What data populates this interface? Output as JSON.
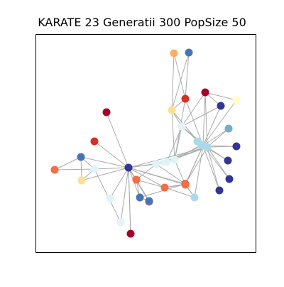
{
  "figure": {
    "title": "KARATE 23 Generatii 300 PopSize 50"
  },
  "graph": {
    "node_colors": {
      "dark_red": "#a50026",
      "red": "#d73027",
      "orange_red": "#f46d43",
      "orange": "#fdae61",
      "light_yellow": "#fee090",
      "pale_yellow": "#ffffbf",
      "pale_blue": "#e0f3f8",
      "light_blue": "#abd9e9",
      "mid_blue": "#74add1",
      "blue": "#4575b4",
      "dark_blue": "#313695"
    },
    "edge_color": "#aaaaaa",
    "nodes": [
      {
        "id": 0,
        "color": "#313695"
      },
      {
        "id": 1,
        "color": "#4575b4"
      },
      {
        "id": 2,
        "color": "#e0f3f8"
      },
      {
        "id": 3,
        "color": "#fee090"
      },
      {
        "id": 4,
        "color": "#f46d43"
      },
      {
        "id": 5,
        "color": "#f46d43"
      },
      {
        "id": 6,
        "color": "#a50026"
      },
      {
        "id": 7,
        "color": "#e0f3f8"
      },
      {
        "id": 8,
        "color": "#4575b4"
      },
      {
        "id": 9,
        "color": "#f46d43"
      },
      {
        "id": 10,
        "color": "#a50026"
      },
      {
        "id": 11,
        "color": "#f46d43"
      },
      {
        "id": 12,
        "color": "#e0f3f8"
      },
      {
        "id": 13,
        "color": "#d73027"
      },
      {
        "id": 14,
        "color": "#4575b4"
      },
      {
        "id": 15,
        "color": "#e0f3f8"
      },
      {
        "id": 16,
        "color": "#f46d43"
      },
      {
        "id": 17,
        "color": "#d73027"
      },
      {
        "id": 18,
        "color": "#e0f3f8"
      },
      {
        "id": 19,
        "color": "#f46d43"
      },
      {
        "id": 20,
        "color": "#abd9e9"
      },
      {
        "id": 21,
        "color": "#e0f3f8"
      },
      {
        "id": 22,
        "color": "#abd9e9"
      },
      {
        "id": 23,
        "color": "#e0f3f8"
      },
      {
        "id": 24,
        "color": "#fee090"
      },
      {
        "id": 25,
        "color": "#d73027"
      },
      {
        "id": 26,
        "color": "#a50026"
      },
      {
        "id": 27,
        "color": "#313695"
      },
      {
        "id": 28,
        "color": "#ffffbf"
      },
      {
        "id": 29,
        "color": "#fdae61"
      },
      {
        "id": 30,
        "color": "#4575b4"
      },
      {
        "id": 31,
        "color": "#74add1"
      },
      {
        "id": 32,
        "color": "#313695"
      },
      {
        "id": 33,
        "color": "#abd9e9"
      },
      {
        "id": 34,
        "color": "#abd9e9"
      },
      {
        "id": 35,
        "color": "#313695"
      },
      {
        "id": 36,
        "color": "#313695"
      },
      {
        "id": 37,
        "color": "#313695"
      },
      {
        "id": 38,
        "color": "#abd9e9"
      },
      {
        "id": 39,
        "color": "#e0f3f8"
      }
    ],
    "edges": [
      [
        0,
        1
      ],
      [
        0,
        2
      ],
      [
        0,
        3
      ],
      [
        0,
        4
      ],
      [
        0,
        7
      ],
      [
        0,
        8
      ],
      [
        0,
        9
      ],
      [
        0,
        10
      ],
      [
        0,
        11
      ],
      [
        0,
        12
      ],
      [
        0,
        13
      ],
      [
        0,
        6
      ],
      [
        0,
        15
      ],
      [
        0,
        17
      ],
      [
        0,
        18
      ],
      [
        0,
        33
      ],
      [
        0,
        14
      ],
      [
        0,
        19
      ],
      [
        1,
        2
      ],
      [
        1,
        3
      ],
      [
        1,
        5
      ],
      [
        2,
        3
      ],
      [
        2,
        5
      ],
      [
        4,
        9
      ],
      [
        4,
        8
      ],
      [
        4,
        11
      ],
      [
        4,
        12
      ],
      [
        4,
        14
      ],
      [
        4,
        16
      ],
      [
        8,
        14
      ],
      [
        8,
        17
      ],
      [
        9,
        14
      ],
      [
        11,
        17
      ],
      [
        11,
        19
      ],
      [
        11,
        20
      ],
      [
        12,
        17
      ],
      [
        12,
        18
      ],
      [
        12,
        33
      ],
      [
        12,
        21
      ],
      [
        17,
        19
      ],
      [
        17,
        20
      ],
      [
        17,
        33
      ],
      [
        17,
        34
      ],
      [
        18,
        33
      ],
      [
        18,
        21
      ],
      [
        18,
        23
      ],
      [
        19,
        20
      ],
      [
        19,
        34
      ],
      [
        19,
        21
      ],
      [
        21,
        24
      ],
      [
        21,
        23
      ],
      [
        21,
        22
      ],
      [
        21,
        25
      ],
      [
        22,
        24
      ],
      [
        22,
        34
      ],
      [
        23,
        24
      ],
      [
        23,
        33
      ],
      [
        23,
        34
      ],
      [
        23,
        26
      ],
      [
        23,
        27
      ],
      [
        24,
        25
      ],
      [
        24,
        29
      ],
      [
        24,
        30
      ],
      [
        25,
        29
      ],
      [
        25,
        30
      ],
      [
        25,
        34
      ],
      [
        26,
        34
      ],
      [
        26,
        33
      ],
      [
        26,
        27
      ],
      [
        26,
        28
      ],
      [
        27,
        34
      ],
      [
        28,
        34
      ],
      [
        31,
        34
      ],
      [
        32,
        34
      ],
      [
        35,
        34
      ],
      [
        36,
        34
      ],
      [
        37,
        34
      ],
      [
        38,
        34
      ],
      [
        39,
        34
      ],
      [
        31,
        33
      ],
      [
        36,
        33
      ],
      [
        35,
        33
      ],
      [
        32,
        33
      ],
      [
        37,
        33
      ],
      [
        38,
        33
      ],
      [
        22,
        33
      ],
      [
        20,
        34
      ],
      [
        10,
        0
      ],
      [
        16,
        0
      ],
      [
        15,
        2
      ]
    ]
  }
}
